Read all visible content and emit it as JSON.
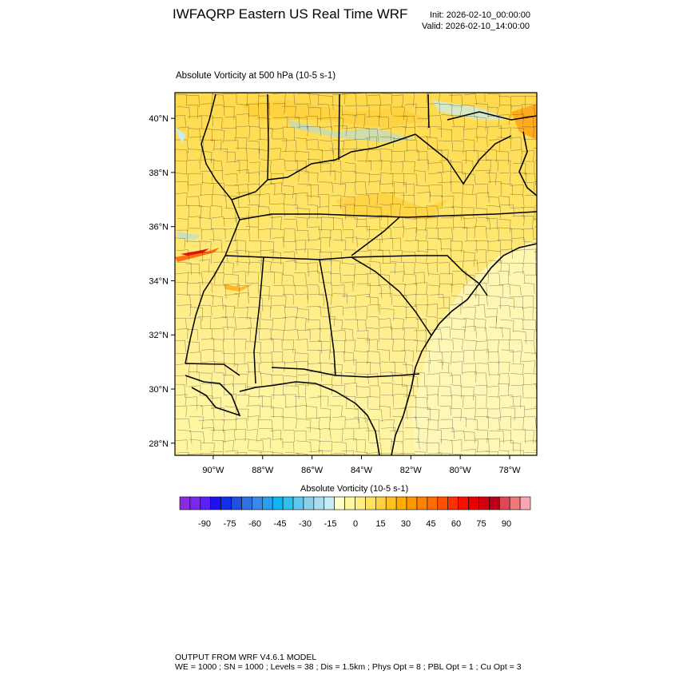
{
  "header": {
    "title": "IWFAQRP Eastern US Real Time WRF",
    "init": "Init: 2026-02-10_00:00:00",
    "valid": "Valid: 2026-02-10_14:00:00"
  },
  "plot": {
    "title": "Absolute Vorticity at 500 hPa   (10-5 s-1)",
    "lat_labels": [
      "40°N",
      "38°N",
      "36°N",
      "34°N",
      "32°N",
      "30°N",
      "28°N"
    ],
    "lon_labels": [
      "90°W",
      "88°W",
      "86°W",
      "84°W",
      "82°W",
      "80°W",
      "78°W"
    ],
    "lat_values": [
      40,
      38,
      36,
      34,
      32,
      30,
      28
    ],
    "lon_values": [
      -90,
      -88,
      -86,
      -84,
      -82,
      -80,
      -78
    ],
    "extent": {
      "lon_min": -91.55,
      "lon_max": -76.9,
      "lat_min": 27.55,
      "lat_max": 40.95
    }
  },
  "colorbar": {
    "title": "Absolute Vorticity  (10-5 s-1)",
    "labels": [
      "-90",
      "-75",
      "-60",
      "-45",
      "-30",
      "-15",
      "0",
      "15",
      "30",
      "45",
      "60",
      "75",
      "90"
    ],
    "colors": [
      "#8a2be2",
      "#7a28f0",
      "#5a20f5",
      "#2010f0",
      "#1030e8",
      "#2050e0",
      "#3070e0",
      "#3a88e8",
      "#2a9ff0",
      "#10b4f5",
      "#30c0f0",
      "#60c8ec",
      "#88d0ec",
      "#a8dcf0",
      "#c8ecf6",
      "#ffffc8",
      "#fff6a0",
      "#ffee80",
      "#ffe060",
      "#ffd040",
      "#ffc020",
      "#ffac00",
      "#ff9800",
      "#ff8200",
      "#ff6c00",
      "#ff5000",
      "#ff3000",
      "#f81000",
      "#e80000",
      "#d00010",
      "#b80018",
      "#e04858",
      "#f07878",
      "#f8a8b0"
    ]
  },
  "footer": {
    "line1": "OUTPUT FROM WRF V4.6.1 MODEL",
    "line2": "WE = 1000 ; SN = 1000 ; Levels = 38 ; Dis = 1.5km ; Phys Opt = 8 ; PBL Opt = 1 ; Cu Opt = 3"
  }
}
